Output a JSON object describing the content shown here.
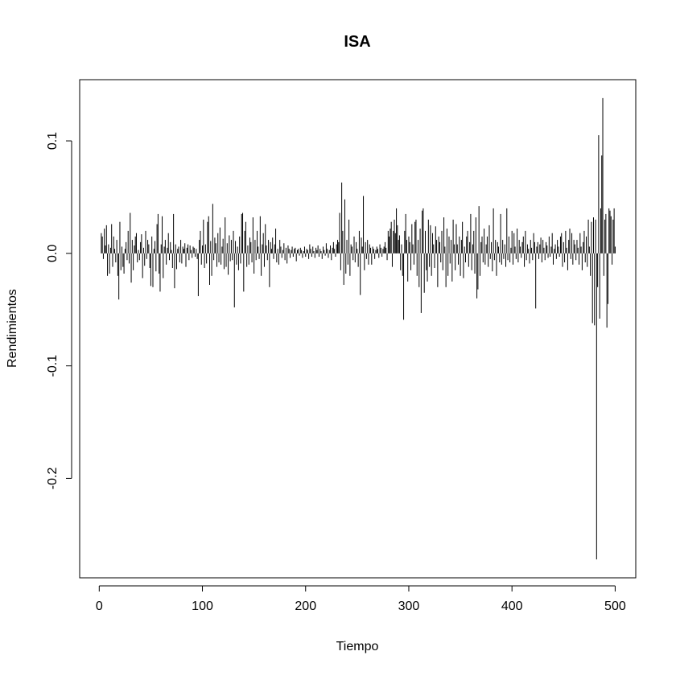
{
  "chart_data": {
    "type": "needle",
    "title": "ISA",
    "x_label": "Tiempo",
    "y_label": "Rendimientos",
    "color": "#000000",
    "xlim": [
      -18.96,
      519.96
    ],
    "ylim": [
      -0.2884,
      0.1544
    ],
    "xticks": [
      0,
      100,
      200,
      300,
      400,
      500
    ],
    "yticks": [
      {
        "value": -0.2,
        "label": "-0.2"
      },
      {
        "value": -0.1,
        "label": "-0.1"
      },
      {
        "value": 0,
        "label": "0.0"
      },
      {
        "value": 0.1,
        "label": "0.1"
      }
    ],
    "x": [
      1,
      2,
      3,
      4,
      5,
      6,
      7,
      8,
      9,
      10,
      11,
      12,
      13,
      14,
      15,
      16,
      17,
      18,
      19,
      20,
      21,
      22,
      23,
      24,
      25,
      26,
      27,
      28,
      29,
      30,
      31,
      32,
      33,
      34,
      35,
      36,
      37,
      38,
      39,
      40,
      41,
      42,
      43,
      44,
      45,
      46,
      47,
      48,
      49,
      50,
      51,
      52,
      53,
      54,
      55,
      56,
      57,
      58,
      59,
      60,
      61,
      62,
      63,
      64,
      65,
      66,
      67,
      68,
      69,
      70,
      71,
      72,
      73,
      74,
      75,
      76,
      77,
      78,
      79,
      80,
      81,
      82,
      83,
      84,
      85,
      86,
      87,
      88,
      89,
      90,
      91,
      92,
      93,
      94,
      95,
      96,
      97,
      98,
      99,
      100,
      101,
      102,
      103,
      104,
      105,
      106,
      107,
      108,
      109,
      110,
      111,
      112,
      113,
      114,
      115,
      116,
      117,
      118,
      119,
      120,
      121,
      122,
      123,
      124,
      125,
      126,
      127,
      128,
      129,
      130,
      131,
      132,
      133,
      134,
      135,
      136,
      137,
      138,
      139,
      140,
      141,
      142,
      143,
      144,
      145,
      146,
      147,
      148,
      149,
      150,
      151,
      152,
      153,
      154,
      155,
      156,
      157,
      158,
      159,
      160,
      161,
      162,
      163,
      164,
      165,
      166,
      167,
      168,
      169,
      170,
      171,
      172,
      173,
      174,
      175,
      176,
      177,
      178,
      179,
      180,
      181,
      182,
      183,
      184,
      185,
      186,
      187,
      188,
      189,
      190,
      191,
      192,
      193,
      194,
      195,
      196,
      197,
      198,
      199,
      200,
      201,
      202,
      203,
      204,
      205,
      206,
      207,
      208,
      209,
      210,
      211,
      212,
      213,
      214,
      215,
      216,
      217,
      218,
      219,
      220,
      221,
      222,
      223,
      224,
      225,
      226,
      227,
      228,
      229,
      230,
      231,
      232,
      233,
      234,
      235,
      236,
      237,
      238,
      239,
      240,
      241,
      242,
      243,
      244,
      245,
      246,
      247,
      248,
      249,
      250,
      251,
      252,
      253,
      254,
      255,
      256,
      257,
      258,
      259,
      260,
      261,
      262,
      263,
      264,
      265,
      266,
      267,
      268,
      269,
      270,
      271,
      272,
      273,
      274,
      275,
      276,
      277,
      278,
      279,
      280,
      281,
      282,
      283,
      284,
      285,
      286,
      287,
      288,
      289,
      290,
      291,
      292,
      293,
      294,
      295,
      296,
      297,
      298,
      299,
      300,
      301,
      302,
      303,
      304,
      305,
      306,
      307,
      308,
      309,
      310,
      311,
      312,
      313,
      314,
      315,
      316,
      317,
      318,
      319,
      320,
      321,
      322,
      323,
      324,
      325,
      326,
      327,
      328,
      329,
      330,
      331,
      332,
      333,
      334,
      335,
      336,
      337,
      338,
      339,
      340,
      341,
      342,
      343,
      344,
      345,
      346,
      347,
      348,
      349,
      350,
      351,
      352,
      353,
      354,
      355,
      356,
      357,
      358,
      359,
      360,
      361,
      362,
      363,
      364,
      365,
      366,
      367,
      368,
      369,
      370,
      371,
      372,
      373,
      374,
      375,
      376,
      377,
      378,
      379,
      380,
      381,
      382,
      383,
      384,
      385,
      386,
      387,
      388,
      389,
      390,
      391,
      392,
      393,
      394,
      395,
      396,
      397,
      398,
      399,
      400,
      401,
      402,
      403,
      404,
      405,
      406,
      407,
      408,
      409,
      410,
      411,
      412,
      413,
      414,
      415,
      416,
      417,
      418,
      419,
      420,
      421,
      422,
      423,
      424,
      425,
      426,
      427,
      428,
      429,
      430,
      431,
      432,
      433,
      434,
      435,
      436,
      437,
      438,
      439,
      440,
      441,
      442,
      443,
      444,
      445,
      446,
      447,
      448,
      449,
      450,
      451,
      452,
      453,
      454,
      455,
      456,
      457,
      458,
      459,
      460,
      461,
      462,
      463,
      464,
      465,
      466,
      467,
      468,
      469,
      470,
      471,
      472,
      473,
      474,
      475,
      476,
      477,
      478,
      479,
      480,
      481,
      482,
      483,
      484,
      485,
      486,
      487,
      488,
      489,
      490,
      491,
      492,
      493,
      494,
      495,
      496,
      497,
      498,
      499,
      500
    ],
    "values": [
      0,
      0.018,
      0.015,
      -0.005,
      0.022,
      0.007,
      0.025,
      -0.02,
      0.008,
      -0.018,
      0.005,
      0.026,
      -0.012,
      0.015,
      0.004,
      -0.008,
      0.012,
      -0.02,
      -0.041,
      0.028,
      -0.015,
      0.006,
      -0.012,
      -0.018,
      0.004,
      0.01,
      -0.006,
      0.02,
      -0.009,
      0.036,
      -0.026,
      0.012,
      -0.015,
      0.007,
      0.015,
      0.018,
      -0.008,
      0.003,
      -0.006,
      0.01,
      0.017,
      -0.022,
      0.005,
      -0.011,
      0.02,
      -0.005,
      0.012,
      0.008,
      -0.013,
      -0.029,
      0.015,
      -0.03,
      0.004,
      0.011,
      -0.016,
      0.026,
      0.035,
      -0.018,
      -0.034,
      0.008,
      0.033,
      -0.022,
      0.006,
      0.012,
      -0.01,
      0.005,
      0.018,
      -0.006,
      0.01,
      0.003,
      -0.013,
      0.035,
      -0.031,
      0.008,
      -0.014,
      0.004,
      0.006,
      -0.008,
      0.012,
      -0.009,
      0.006,
      0.004,
      0.009,
      -0.012,
      0.005,
      0.008,
      -0.006,
      0.007,
      0.003,
      -0.004,
      0.006,
      0.005,
      -0.003,
      0.004,
      -0.005,
      -0.038,
      0.012,
      0.02,
      -0.01,
      0.007,
      0.03,
      -0.013,
      0.008,
      -0.009,
      0.028,
      0.033,
      -0.028,
      0.011,
      -0.02,
      0.044,
      -0.006,
      0.014,
      0.009,
      -0.012,
      0.018,
      -0.008,
      0.023,
      -0.01,
      0.006,
      0.013,
      -0.014,
      0.032,
      -0.012,
      0.009,
      -0.019,
      0.016,
      -0.007,
      0.012,
      -0.006,
      0.02,
      -0.048,
      0.011,
      -0.01,
      0.006,
      -0.015,
      0.015,
      -0.009,
      0.035,
      0.036,
      -0.034,
      0.02,
      0.028,
      -0.012,
      0.007,
      -0.01,
      0.014,
      0.01,
      -0.008,
      0.032,
      -0.018,
      0.012,
      -0.006,
      0.02,
      0.006,
      -0.005,
      0.033,
      -0.02,
      0.008,
      0.018,
      -0.012,
      0.026,
      0.007,
      -0.006,
      0.012,
      -0.03,
      0.01,
      0.004,
      0.014,
      -0.005,
      0.008,
      0.022,
      -0.008,
      0.004,
      -0.01,
      0.012,
      0.006,
      -0.004,
      0.003,
      0.009,
      -0.006,
      0.005,
      -0.009,
      0.007,
      0.004,
      -0.004,
      0.003,
      0.006,
      -0.003,
      0.004,
      0.005,
      -0.007,
      0.003,
      0.004,
      -0.002,
      0.005,
      0.003,
      -0.004,
      0.002,
      0.006,
      -0.003,
      0.004,
      0.003,
      -0.005,
      0.008,
      0.004,
      -0.003,
      0.006,
      0.002,
      -0.004,
      0.005,
      0.003,
      0.007,
      -0.003,
      0.004,
      0.002,
      -0.005,
      0.006,
      0.003,
      -0.002,
      0.009,
      0.004,
      -0.004,
      0.003,
      0.007,
      -0.006,
      0.005,
      0.01,
      0.004,
      -0.003,
      0.008,
      0.012,
      0.01,
      0.036,
      -0.015,
      0.063,
      0.02,
      -0.028,
      0.048,
      -0.018,
      0.012,
      -0.01,
      0.03,
      -0.02,
      0.008,
      0.006,
      -0.006,
      0.015,
      -0.008,
      0.01,
      0.004,
      -0.012,
      0.02,
      -0.037,
      0.014,
      0.006,
      0.051,
      -0.015,
      0.01,
      -0.005,
      0.012,
      -0.01,
      0.008,
      0.005,
      -0.01,
      0.006,
      0.004,
      -0.005,
      0.003,
      0.006,
      0.004,
      -0.004,
      0.008,
      0.005,
      -0.003,
      0.004,
      0.006,
      0.01,
      0.005,
      -0.006,
      0.02,
      0.015,
      0.022,
      0.028,
      -0.012,
      0.02,
      0.03,
      0.018,
      0.04,
      0.025,
      0.012,
      0.016,
      -0.015,
      0.008,
      -0.02,
      -0.059,
      0.02,
      0.035,
      0.012,
      -0.025,
      0.015,
      0.01,
      -0.015,
      0.026,
      0.008,
      -0.01,
      0.028,
      0.03,
      -0.02,
      0.012,
      -0.03,
      0.022,
      -0.053,
      0.038,
      0.04,
      -0.035,
      0.02,
      -0.015,
      -0.025,
      0.03,
      -0.012,
      0.025,
      -0.02,
      0.018,
      0.008,
      -0.013,
      0.024,
      0.012,
      -0.03,
      0.015,
      0.01,
      -0.008,
      0.02,
      -0.015,
      0.032,
      0.006,
      -0.03,
      0.022,
      -0.02,
      0.015,
      -0.009,
      0.012,
      -0.025,
      0.03,
      0.008,
      -0.015,
      0.026,
      0.008,
      -0.01,
      0.015,
      -0.02,
      0.012,
      0.028,
      -0.022,
      0.006,
      -0.008,
      0.015,
      0.02,
      -0.012,
      0.01,
      0.035,
      -0.015,
      0.008,
      0.02,
      -0.018,
      0.032,
      -0.04,
      -0.032,
      0.042,
      -0.02,
      0.01,
      0.015,
      -0.008,
      0.022,
      -0.01,
      0.008,
      0.015,
      -0.012,
      0.025,
      -0.005,
      0.01,
      -0.016,
      0.04,
      -0.006,
      0.012,
      -0.02,
      0.01,
      0.006,
      -0.008,
      0.035,
      -0.01,
      0.012,
      -0.005,
      0.008,
      -0.012,
      0.04,
      -0.006,
      0.015,
      -0.008,
      0.005,
      0.02,
      -0.01,
      0.018,
      0.006,
      -0.005,
      0.022,
      -0.008,
      0.012,
      0.006,
      -0.004,
      0.01,
      0.015,
      -0.012,
      0.02,
      -0.006,
      0.008,
      0.004,
      -0.009,
      0.012,
      0.005,
      -0.006,
      0.018,
      0.01,
      -0.049,
      0.006,
      0.01,
      -0.005,
      0.008,
      0.014,
      -0.008,
      0.012,
      0.005,
      -0.006,
      0.01,
      0.007,
      -0.004,
      0.015,
      -0.003,
      0.006,
      0.018,
      -0.01,
      0.004,
      0.008,
      -0.005,
      0.012,
      0.006,
      -0.003,
      0.015,
      0.018,
      -0.012,
      0.01,
      -0.008,
      0.02,
      0.005,
      -0.015,
      0.012,
      0.022,
      -0.005,
      0.018,
      -0.01,
      0.012,
      0.008,
      -0.006,
      0.012,
      0.005,
      -0.01,
      0.018,
      0.006,
      -0.015,
      0.01,
      0.02,
      -0.008,
      0.015,
      -0.012,
      0.03,
      0.006,
      -0.02,
      0.028,
      -0.062,
      0.032,
      -0.064,
      0.03,
      -0.272,
      -0.03,
      0.105,
      -0.058,
      0.04,
      0.087,
      0.138,
      -0.02,
      0.03,
      0.035,
      -0.066,
      -0.045,
      0.04,
      0.038,
      0.033,
      -0.01,
      0.03,
      0.04,
      0.006
    ]
  }
}
